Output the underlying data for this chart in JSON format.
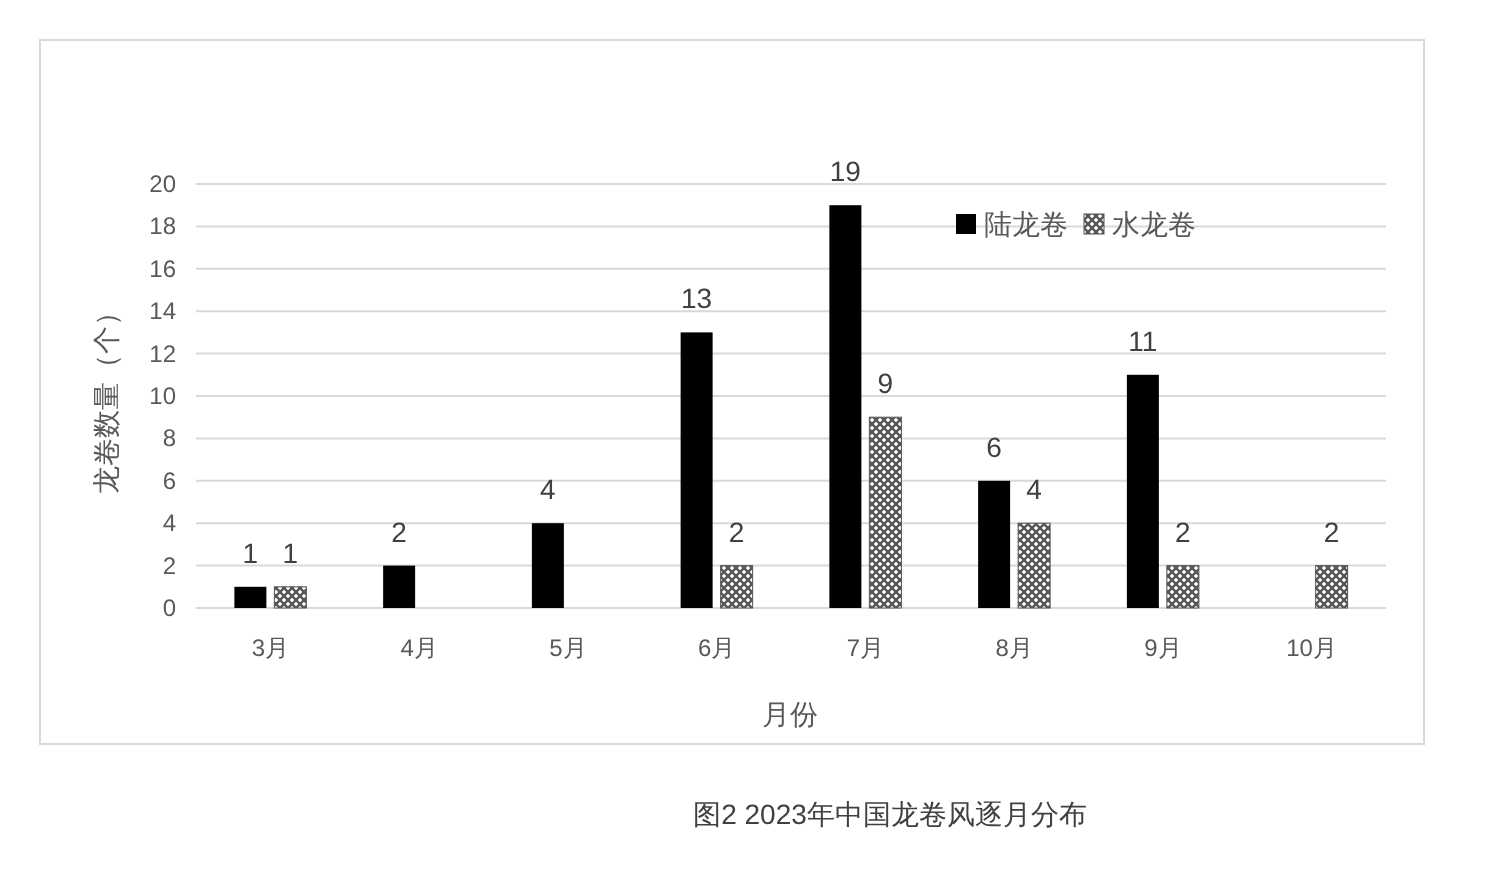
{
  "chart_data": {
    "type": "bar",
    "ylabel": "龙卷数量（个）",
    "xlabel": "月份",
    "categories": [
      "3月",
      "4月",
      "5月",
      "6月",
      "7月",
      "8月",
      "9月",
      "10月"
    ],
    "series": [
      {
        "name": "陆龙卷",
        "color": "#000000",
        "values": [
          1,
          2,
          4,
          13,
          19,
          6,
          11,
          null
        ]
      },
      {
        "name": "水龙卷",
        "color": "#555555",
        "values": [
          1,
          null,
          null,
          2,
          9,
          4,
          2,
          2
        ]
      }
    ],
    "ylim": [
      0,
      20
    ],
    "yticks": [
      0,
      2,
      4,
      6,
      8,
      10,
      12,
      14,
      16,
      18,
      20
    ],
    "grid": "y",
    "legend": "top right",
    "data_labels": true,
    "annotations": [
      "图2 2023年中国龙卷风逐月分布"
    ]
  }
}
